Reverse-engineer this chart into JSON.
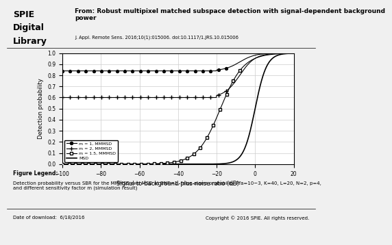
{
  "xlabel": "Signal-to-background-plus-noise ratio (dB)",
  "ylabel": "Detection probability",
  "xlim": [
    -100,
    20
  ],
  "ylim": [
    0,
    1.0
  ],
  "xticks": [
    -100,
    -80,
    -60,
    -40,
    -20,
    0,
    20
  ],
  "yticks": [
    0.0,
    0.1,
    0.2,
    0.3,
    0.4,
    0.5,
    0.6,
    0.7,
    0.8,
    0.9,
    1.0
  ],
  "legend_labels": [
    "m = 1, MMMSD",
    "m = 2, MMMSD",
    "m = 1.5, MMMSD",
    "MSD"
  ],
  "footer_left": "Date of download:  6/18/2016",
  "footer_right": "Copyright © 2016 SPIE. All rights reserved.",
  "header_title": "From: Robust multipixel matched subspace detection with signal-dependent background\npower",
  "header_subtitle": "J. Appl. Remote Sens. 2016;10(1):015006. doi:10.1117/1.JRS.10.015006",
  "figure_legend_title": "Figure Legend:",
  "figure_legend_body": "Detection probability versus SBR for the MMMSD and MSD at BNR=1, false-alarm probability Pfa=10−3, K=40, L=20, N=2, p=4,\nand different sensitivity factor m (simulation result)",
  "bg_color": "#f0f0f0"
}
